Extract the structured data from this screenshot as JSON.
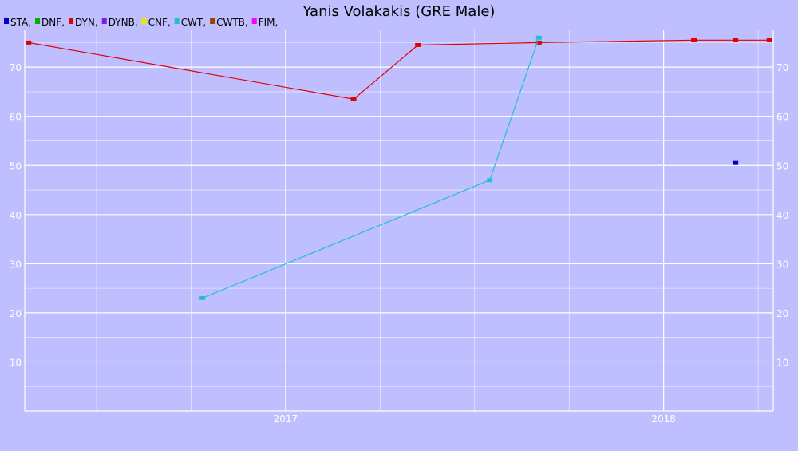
{
  "chart_data": {
    "type": "line",
    "title": "Yanis Volakakis (GRE Male)",
    "xlabel": "",
    "ylabel": "",
    "legend_placement": "top-left",
    "grid": true,
    "xlim": [
      2016.31,
      2018.29
    ],
    "ylim": [
      0,
      77.5
    ],
    "x_ticks": [
      {
        "label": "2017",
        "value": 2017.0
      },
      {
        "label": "2018",
        "value": 2018.0
      }
    ],
    "y_ticks": [
      10,
      20,
      30,
      40,
      50,
      60,
      70
    ],
    "legend": [
      {
        "label": "STA,",
        "color": "#0000cc"
      },
      {
        "label": "DNF,",
        "color": "#00b000"
      },
      {
        "label": "DYN,",
        "color": "#e00000"
      },
      {
        "label": "DYNB,",
        "color": "#7a1fe0"
      },
      {
        "label": "CNF,",
        "color": "#e8e800"
      },
      {
        "label": "CWT,",
        "color": "#22bfd0"
      },
      {
        "label": "CWTB,",
        "color": "#a04000"
      },
      {
        "label": "FIM,",
        "color": "#ff00ff"
      }
    ],
    "series": [
      {
        "name": "DYN",
        "color": "#e00000",
        "points": [
          {
            "x": 2016.32,
            "y": 75
          },
          {
            "x": 2017.18,
            "y": 63.5
          },
          {
            "x": 2017.35,
            "y": 74.5
          },
          {
            "x": 2017.67,
            "y": 75
          },
          {
            "x": 2018.08,
            "y": 75.5
          },
          {
            "x": 2018.19,
            "y": 75.5
          },
          {
            "x": 2018.28,
            "y": 75.5
          }
        ]
      },
      {
        "name": "CWT",
        "color": "#22bfd0",
        "points": [
          {
            "x": 2016.78,
            "y": 23
          },
          {
            "x": 2017.54,
            "y": 47
          },
          {
            "x": 2017.67,
            "y": 76
          }
        ]
      },
      {
        "name": "STA",
        "color": "#0000cc",
        "points": [
          {
            "x": 2018.19,
            "y": 50.5
          }
        ]
      }
    ]
  }
}
